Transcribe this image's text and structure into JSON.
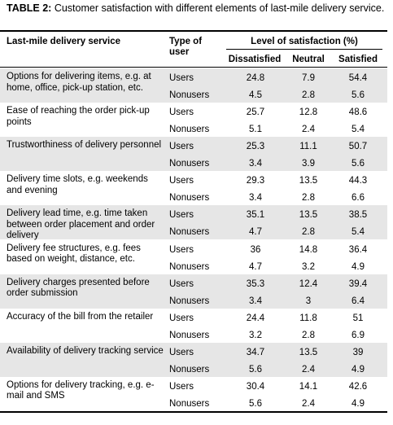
{
  "caption": {
    "label": "TABLE 2:",
    "text": "Customer satisfaction with different elements of last-mile delivery service."
  },
  "headers": {
    "service": "Last-mile delivery service",
    "type_line1": "Type of",
    "type_line2": "user",
    "satisfaction": "Level of satisfaction (%)",
    "dissatisfied": "Dissatisfied",
    "neutral": "Neutral",
    "satisfied": "Satisfied"
  },
  "rows": [
    {
      "service": "Options for delivering items, e.g. at home, office, pick-up station, etc.",
      "users": {
        "type": "Users",
        "dissatisfied": "24.8",
        "neutral": "7.9",
        "satisfied": "54.4"
      },
      "nonusers": {
        "type": "Nonusers",
        "dissatisfied": "4.5",
        "neutral": "2.8",
        "satisfied": "5.6"
      }
    },
    {
      "service": "Ease of reaching the order pick-up points",
      "users": {
        "type": "Users",
        "dissatisfied": "25.7",
        "neutral": "12.8",
        "satisfied": "48.6"
      },
      "nonusers": {
        "type": "Nonusers",
        "dissatisfied": "5.1",
        "neutral": "2.4",
        "satisfied": "5.4"
      }
    },
    {
      "service": "Trustworthiness of delivery personnel",
      "users": {
        "type": "Users",
        "dissatisfied": "25.3",
        "neutral": "11.1",
        "satisfied": "50.7"
      },
      "nonusers": {
        "type": "Nonusers",
        "dissatisfied": "3.4",
        "neutral": "3.9",
        "satisfied": "5.6"
      }
    },
    {
      "service": "Delivery time slots, e.g. weekends and evening",
      "users": {
        "type": "Users",
        "dissatisfied": "29.3",
        "neutral": "13.5",
        "satisfied": "44.3"
      },
      "nonusers": {
        "type": "Nonusers",
        "dissatisfied": "3.4",
        "neutral": "2.8",
        "satisfied": "6.6"
      }
    },
    {
      "service": "Delivery lead time, e.g. time taken between order placement and order delivery",
      "users": {
        "type": "Users",
        "dissatisfied": "35.1",
        "neutral": "13.5",
        "satisfied": "38.5"
      },
      "nonusers": {
        "type": "Nonusers",
        "dissatisfied": "4.7",
        "neutral": "2.8",
        "satisfied": "5.4"
      }
    },
    {
      "service": "Delivery fee structures, e.g. fees based on weight, distance, etc.",
      "users": {
        "type": "Users",
        "dissatisfied": "36",
        "neutral": "14.8",
        "satisfied": "36.4"
      },
      "nonusers": {
        "type": "Nonusers",
        "dissatisfied": "4.7",
        "neutral": "3.2",
        "satisfied": "4.9"
      }
    },
    {
      "service": "Delivery charges presented before order submission",
      "users": {
        "type": "Users",
        "dissatisfied": "35.3",
        "neutral": "12.4",
        "satisfied": "39.4"
      },
      "nonusers": {
        "type": "Nonusers",
        "dissatisfied": "3.4",
        "neutral": "3",
        "satisfied": "6.4"
      }
    },
    {
      "service": "Accuracy of the bill from the retailer",
      "users": {
        "type": "Users",
        "dissatisfied": "24.4",
        "neutral": "11.8",
        "satisfied": "51"
      },
      "nonusers": {
        "type": "Nonusers",
        "dissatisfied": "3.2",
        "neutral": "2.8",
        "satisfied": "6.9"
      }
    },
    {
      "service": "Availability of delivery tracking service",
      "users": {
        "type": "Users",
        "dissatisfied": "34.7",
        "neutral": "13.5",
        "satisfied": "39"
      },
      "nonusers": {
        "type": "Nonusers",
        "dissatisfied": "5.6",
        "neutral": "2.4",
        "satisfied": "4.9"
      }
    },
    {
      "service": "Options for delivery tracking, e.g. e-mail and SMS",
      "users": {
        "type": "Users",
        "dissatisfied": "30.4",
        "neutral": "14.1",
        "satisfied": "42.6"
      },
      "nonusers": {
        "type": "Nonusers",
        "dissatisfied": "5.6",
        "neutral": "2.4",
        "satisfied": "4.9"
      }
    }
  ]
}
